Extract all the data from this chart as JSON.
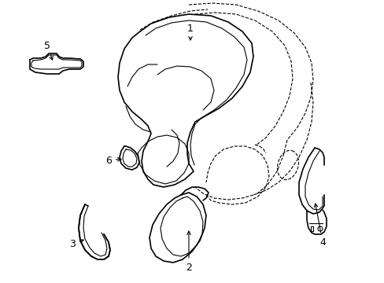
{
  "background_color": "#ffffff",
  "line_color": "#000000",
  "figsize": [
    4.89,
    3.6
  ],
  "dpi": 100,
  "lw_main": 1.2,
  "lw_thin": 0.8,
  "lw_dash": 0.8
}
